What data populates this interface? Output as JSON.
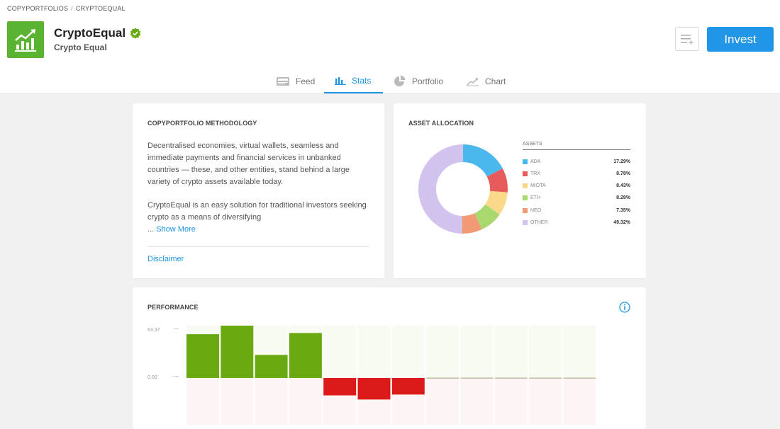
{
  "breadcrumb": {
    "root": "COPYPORTFOLIOS",
    "separator": "/",
    "current": "CRYPTOEQUAL"
  },
  "profile": {
    "title": "CryptoEqual",
    "subtitle": "Crypto Equal",
    "logo_icon": "chart-up-icon",
    "verified_icon": "verified-badge-icon",
    "brand_color": "#5ab431"
  },
  "actions": {
    "watchlist_icon": "add-to-list-icon",
    "invest_label": "Invest",
    "accent": "#2196e6"
  },
  "tabs": [
    {
      "label": "Feed",
      "icon": "feed-icon",
      "active": false
    },
    {
      "label": "Stats",
      "icon": "bar-chart-icon",
      "active": true
    },
    {
      "label": "Portfolio",
      "icon": "pie-chart-icon",
      "active": false
    },
    {
      "label": "Chart",
      "icon": "line-chart-icon",
      "active": false
    }
  ],
  "methodology": {
    "title": "COPYPORTFOLIO METHODOLOGY",
    "paragraph1": "Decentralised economies, virtual wallets, seamless and immediate  payments and financial services in unbanked countries — these, and other entities, stand behind a large variety of crypto assets available  today.",
    "paragraph2": "CryptoEqual is an easy solution for traditional investors seeking crypto as a means of diversifying",
    "ellipsis": "...",
    "show_more": "Show More",
    "disclaimer": "Disclaimer"
  },
  "allocation": {
    "title": "ASSET ALLOCATION",
    "legend_header": "ASSETS",
    "assets": [
      {
        "name": "ADA",
        "value": 17.29,
        "label": "17.29%",
        "color": "#4ab8ec"
      },
      {
        "name": "TRX",
        "value": 8.78,
        "label": "8.78%",
        "color": "#e85b5b"
      },
      {
        "name": "MIOTA",
        "value": 8.43,
        "label": "8.43%",
        "color": "#fcd88a"
      },
      {
        "name": "ETH",
        "value": 8.28,
        "label": "8.28%",
        "color": "#a8d86e"
      },
      {
        "name": "NEO",
        "value": 7.35,
        "label": "7.35%",
        "color": "#f19a74"
      },
      {
        "name": "OTHER",
        "value": 49.32,
        "label": "49.32%",
        "color": "#d2c2ee"
      }
    ]
  },
  "performance": {
    "title": "PERFORMANCE",
    "info_icon": "info-icon",
    "y_max_label": "63.37",
    "y_zero_label": "0.00",
    "tick_mark": "—",
    "positive_color": "#6aaa10",
    "negative_color": "#dd1a1a"
  },
  "chart_data": {
    "type": "bar",
    "values": [
      53.0,
      63.37,
      28.0,
      54.5,
      -21.0,
      -26.0,
      -20.0,
      0,
      0,
      0,
      0,
      0
    ],
    "ylim": [
      -63.37,
      63.37
    ],
    "ytick_labels": [
      "63.37",
      "0.00"
    ]
  }
}
